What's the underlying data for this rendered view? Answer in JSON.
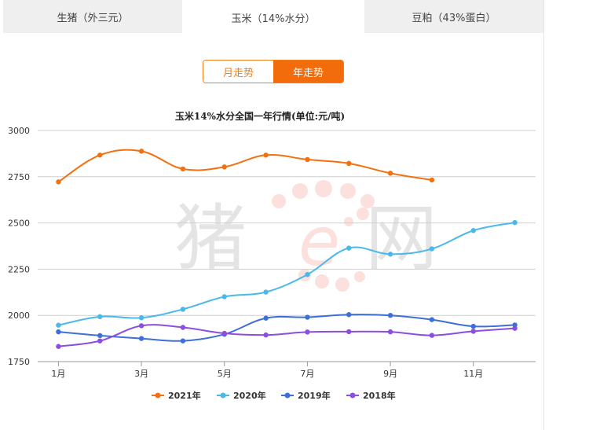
{
  "tabs": [
    {
      "label": "生猪（外三元）",
      "active": false
    },
    {
      "label": "玉米（14%水分）",
      "active": true
    },
    {
      "label": "豆粕（43%蛋白）",
      "active": false
    }
  ],
  "toggle": {
    "month_label": "月走势",
    "year_label": "年走势",
    "active": "year"
  },
  "watermark": {
    "left": "猪",
    "right": "网",
    "mark": "e"
  },
  "chart_data": {
    "type": "line",
    "title": "玉米14%水分全国一年行情(单位:元/吨)",
    "x": [
      1,
      2,
      3,
      4,
      5,
      6,
      7,
      8,
      9,
      10,
      11,
      12
    ],
    "x_tick_labels": [
      "1月",
      "3月",
      "5月",
      "7月",
      "9月",
      "11月"
    ],
    "x_tick_values": [
      1,
      3,
      5,
      7,
      9,
      11
    ],
    "ylim": [
      1750,
      3000
    ],
    "y_ticks": [
      1750,
      2000,
      2250,
      2500,
      2750,
      3000
    ],
    "grid": true,
    "smooth": true,
    "legend_position": "bottom",
    "series": [
      {
        "name": "2021年",
        "color": "#f4700f",
        "values": [
          2722,
          2867,
          2888,
          2792,
          2803,
          2867,
          2843,
          2822,
          2769,
          2732,
          null,
          null
        ]
      },
      {
        "name": "2020年",
        "color": "#48b9ea",
        "values": [
          1947,
          1993,
          1987,
          2033,
          2101,
          2126,
          2221,
          2364,
          2331,
          2360,
          2459,
          2502
        ]
      },
      {
        "name": "2019年",
        "color": "#3e6ed8",
        "values": [
          1911,
          1891,
          1875,
          1862,
          1898,
          1985,
          1990,
          2004,
          2000,
          1977,
          1941,
          1948
        ]
      },
      {
        "name": "2018年",
        "color": "#8b4ee0",
        "values": [
          1832,
          1862,
          1944,
          1935,
          1903,
          1894,
          1910,
          1912,
          1911,
          1892,
          1914,
          1930
        ]
      }
    ]
  }
}
